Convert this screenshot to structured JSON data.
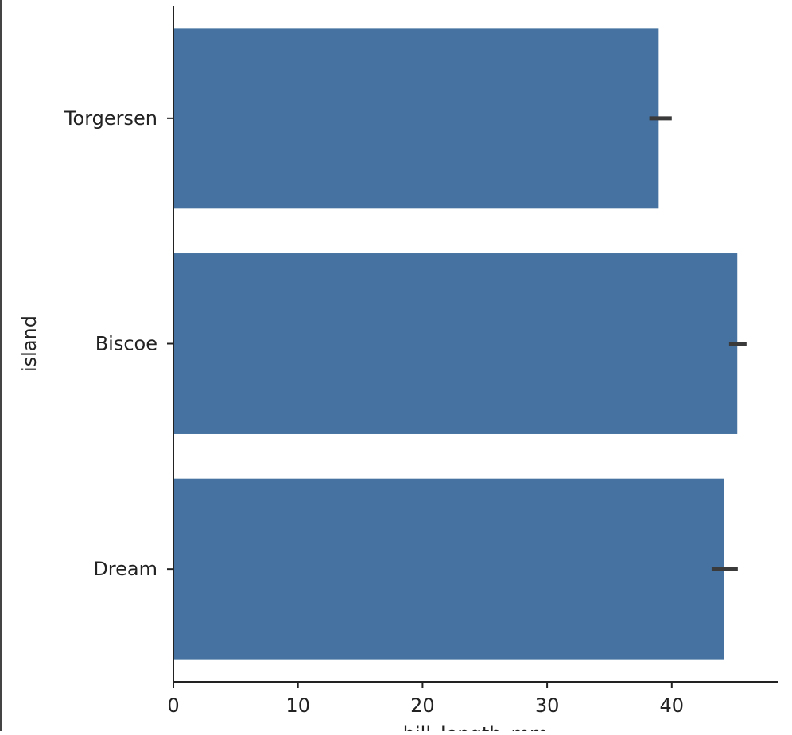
{
  "chart_data": {
    "type": "bar",
    "orientation": "horizontal",
    "categories": [
      "Torgersen",
      "Biscoe",
      "Dream"
    ],
    "values": [
      38.95,
      45.26,
      44.17
    ],
    "error_bars": [
      [
        38.2,
        40.0
      ],
      [
        44.6,
        46.0
      ],
      [
        43.2,
        45.3
      ]
    ],
    "xticks": [
      0,
      10,
      20,
      30,
      40
    ],
    "xlim": [
      0,
      48.5
    ],
    "xlabel": "bill_length_mm",
    "ylabel": "island",
    "grid": false,
    "colors": {
      "bar": "#4572a0",
      "error": "#3a3a3a",
      "axis": "#222222"
    }
  }
}
